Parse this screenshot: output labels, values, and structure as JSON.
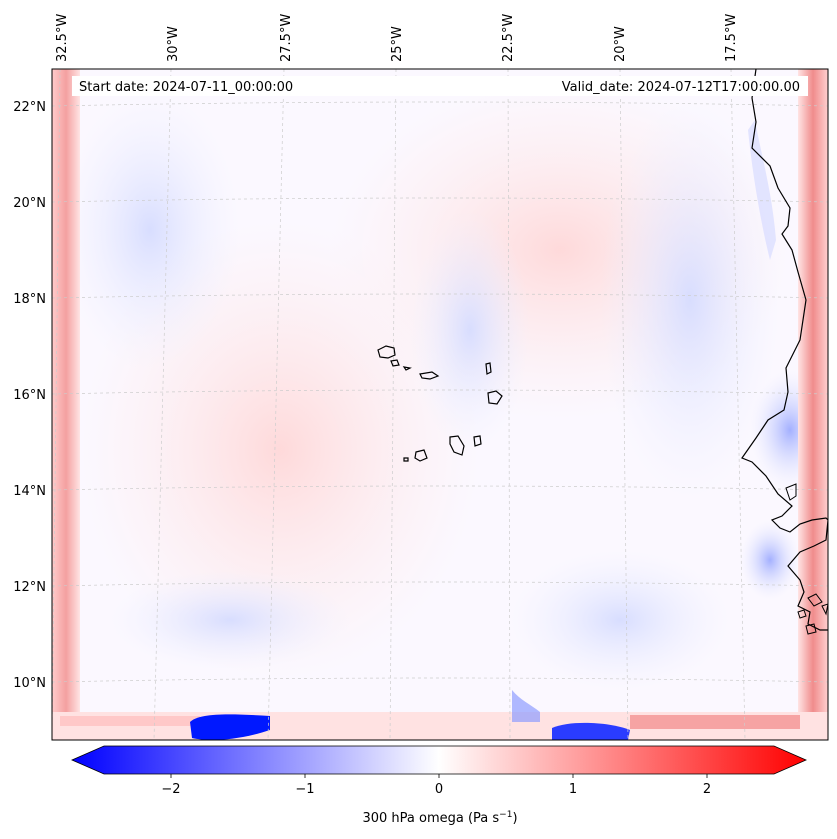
{
  "header": {
    "start_date": "Start date: 2024-07-11_00:00:00",
    "valid_date": "Valid_date: 2024-07-12T17:00:00.00"
  },
  "map": {
    "field": "300 hPa omega",
    "lon_labels": [
      "32.5°W",
      "30°W",
      "27.5°W",
      "25°W",
      "22.5°W",
      "20°W",
      "17.5°W"
    ],
    "lat_labels": [
      "22°N",
      "20°N",
      "18°N",
      "16°N",
      "14°N",
      "12°N",
      "10°N"
    ],
    "colors": {
      "negative_max": "#0000ff",
      "neutral": "#ffffff",
      "positive_max": "#ff0000",
      "coastline": "#000000",
      "grid": "#cccccc"
    }
  },
  "colorbar": {
    "ticks": [
      "−2",
      "−1",
      "0",
      "1",
      "2"
    ],
    "tick_values": [
      -2,
      -1,
      0,
      1,
      2
    ],
    "range": [
      -2.6,
      2.6
    ],
    "label_main": "300 hPa omega (Pa s",
    "label_exp": "−1",
    "label_end": ")"
  }
}
